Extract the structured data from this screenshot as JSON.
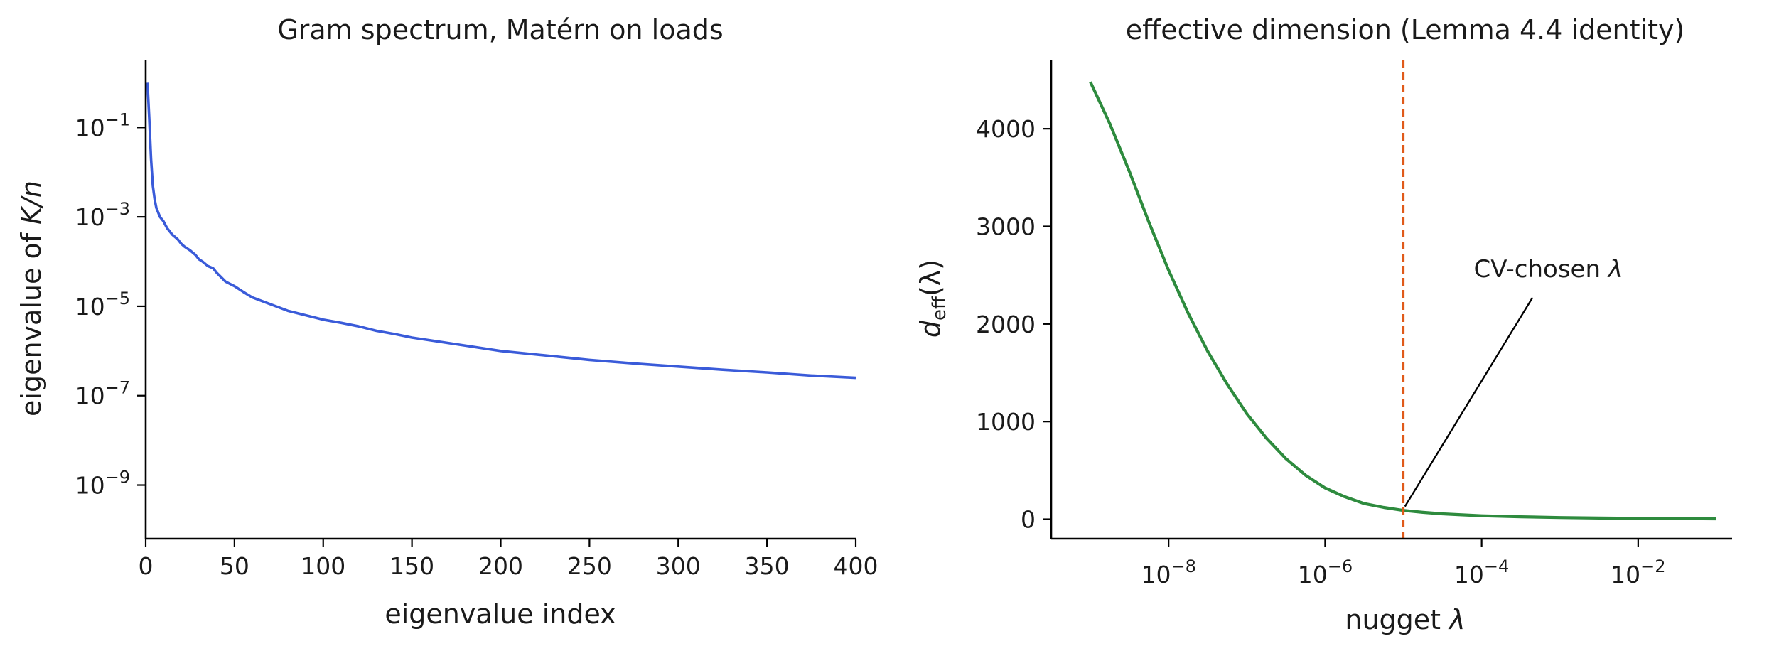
{
  "chart_data": [
    {
      "type": "line",
      "title": "Gram spectrum, Matérn on loads",
      "xlabel": "eigenvalue index",
      "ylabel": {
        "prefix": "eigenvalue of ",
        "math": "K/n"
      },
      "xscale": "linear",
      "yscale": "log",
      "xlim": [
        0,
        400
      ],
      "ylim_exp": [
        -10.2,
        0.5
      ],
      "xticks": [
        {
          "value": 0,
          "label": "0"
        },
        {
          "value": 50,
          "label": "50"
        },
        {
          "value": 100,
          "label": "100"
        },
        {
          "value": 150,
          "label": "150"
        },
        {
          "value": 200,
          "label": "200"
        },
        {
          "value": 250,
          "label": "250"
        },
        {
          "value": 300,
          "label": "300"
        },
        {
          "value": 350,
          "label": "350"
        },
        {
          "value": 400,
          "label": "400"
        }
      ],
      "yticks": [
        {
          "exp": -1,
          "base": "10",
          "sup": "−1"
        },
        {
          "exp": -3,
          "base": "10",
          "sup": "−3"
        },
        {
          "exp": -5,
          "base": "10",
          "sup": "−5"
        },
        {
          "exp": -7,
          "base": "10",
          "sup": "−7"
        },
        {
          "exp": -9,
          "base": "10",
          "sup": "−9"
        }
      ],
      "grid": false,
      "series": [
        {
          "color": "#3a5bd9",
          "x": [
            1,
            2,
            3,
            4,
            5,
            6,
            8,
            10,
            12,
            15,
            18,
            20,
            22,
            25,
            28,
            30,
            32,
            35,
            38,
            40,
            45,
            50,
            55,
            60,
            70,
            80,
            90,
            100,
            110,
            120,
            130,
            140,
            150,
            175,
            200,
            225,
            250,
            275,
            300,
            325,
            350,
            375,
            400
          ],
          "y_exp": [
            0.0,
            -0.8,
            -1.7,
            -2.3,
            -2.6,
            -2.8,
            -3.0,
            -3.1,
            -3.25,
            -3.4,
            -3.5,
            -3.6,
            -3.67,
            -3.75,
            -3.85,
            -3.95,
            -4.0,
            -4.1,
            -4.15,
            -4.25,
            -4.45,
            -4.55,
            -4.68,
            -4.8,
            -4.95,
            -5.1,
            -5.2,
            -5.3,
            -5.37,
            -5.45,
            -5.55,
            -5.62,
            -5.7,
            -5.85,
            -6.0,
            -6.1,
            -6.2,
            -6.28,
            -6.35,
            -6.42,
            -6.48,
            -6.55,
            -6.6
          ]
        }
      ]
    },
    {
      "type": "line",
      "title": "effective dimension (Lemma 4.4 identity)",
      "xlabel": {
        "prefix": "nugget ",
        "math": "λ"
      },
      "ylabel": {
        "math": "d",
        "sub": "eff",
        "suffix": "(λ)"
      },
      "xscale": "log",
      "yscale": "linear",
      "xlim_exp": [
        -9.5,
        -0.8
      ],
      "ylim": [
        -200,
        4700
      ],
      "xticks": [
        {
          "exp": -8,
          "base": "10",
          "sup": "−8"
        },
        {
          "exp": -6,
          "base": "10",
          "sup": "−6"
        },
        {
          "exp": -4,
          "base": "10",
          "sup": "−4"
        },
        {
          "exp": -2,
          "base": "10",
          "sup": "−2"
        }
      ],
      "yticks": [
        {
          "value": 0,
          "label": "0"
        },
        {
          "value": 1000,
          "label": "1000"
        },
        {
          "value": 2000,
          "label": "2000"
        },
        {
          "value": 3000,
          "label": "3000"
        },
        {
          "value": 4000,
          "label": "4000"
        }
      ],
      "grid": false,
      "series": [
        {
          "color": "#2e8b3e",
          "x_exp": [
            -9.0,
            -8.75,
            -8.5,
            -8.25,
            -8.0,
            -7.75,
            -7.5,
            -7.25,
            -7.0,
            -6.75,
            -6.5,
            -6.25,
            -6.0,
            -5.75,
            -5.5,
            -5.25,
            -5.0,
            -4.75,
            -4.5,
            -4.25,
            -4.0,
            -3.5,
            -3.0,
            -2.5,
            -2.0,
            -1.5,
            -1.0
          ],
          "y": [
            4480,
            4050,
            3560,
            3040,
            2550,
            2110,
            1720,
            1380,
            1080,
            830,
            620,
            450,
            320,
            230,
            160,
            120,
            90,
            70,
            55,
            45,
            35,
            25,
            17,
            12,
            8,
            6,
            4
          ]
        }
      ],
      "vline": {
        "x_exp": -5.0,
        "color": "#e05a1a",
        "style": "dashed"
      },
      "annotation": {
        "text": "CV-chosen ",
        "math": "λ",
        "point_x_exp": -4.98,
        "point_y": 130,
        "text_x_exp": -3.15,
        "text_y": 2480,
        "arrow_end_x_exp": -3.35,
        "arrow_end_y": 2270
      }
    }
  ]
}
